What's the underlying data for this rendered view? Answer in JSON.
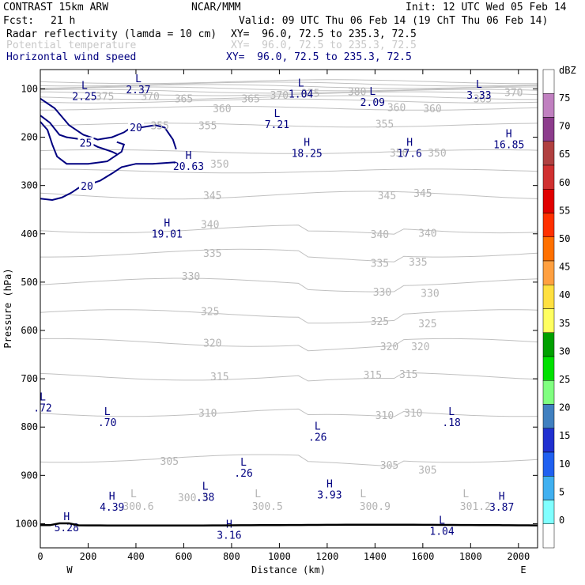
{
  "header": {
    "model": "CONTRAST 15km ARW",
    "center": "NCAR/MMM",
    "init": "Init: 12 UTC Wed 05 Feb 14",
    "fcst_label": "Fcst:",
    "fcst_value": "21 h",
    "valid": "Valid: 09 UTC Thu 06 Feb 14 (19 ChT Thu 06 Feb 14)",
    "fields": [
      {
        "name": "Radar reflectivity (lamda = 10 cm)",
        "xy": "XY=  96.0, 72.5 to 235.3, 72.5",
        "color": "#000000"
      },
      {
        "name": "Potential temperature",
        "xy": "XY=  96.0, 72.5 to 235.3, 72.5",
        "color": "#c8c8c8"
      },
      {
        "name": "Horizontal wind speed",
        "xy": "XY=  96.0, 72.5 to 235.3, 72.5",
        "color": "#000080"
      }
    ]
  },
  "chart_data": {
    "type": "contour-cross-section",
    "xlabel": "Distance (km)",
    "ylabel": "Pressure (hPa)",
    "xlim": [
      0,
      2080
    ],
    "ylim": [
      1050,
      60
    ],
    "x_ticks": [
      0,
      200,
      400,
      600,
      800,
      1000,
      1200,
      1400,
      1600,
      1800,
      2000
    ],
    "y_ticks": [
      100,
      200,
      300,
      400,
      500,
      600,
      700,
      800,
      900,
      1000
    ],
    "west_label": "W",
    "east_label": "E",
    "theta_labels": [
      {
        "text": "375",
        "x": 270,
        "p": 115
      },
      {
        "text": "370",
        "x": 460,
        "p": 115
      },
      {
        "text": "365",
        "x": 600,
        "p": 120
      },
      {
        "text": "365",
        "x": 880,
        "p": 120
      },
      {
        "text": "370",
        "x": 1000,
        "p": 112
      },
      {
        "text": "375",
        "x": 1130,
        "p": 108
      },
      {
        "text": "380",
        "x": 1325,
        "p": 105
      },
      {
        "text": "360",
        "x": 760,
        "p": 140
      },
      {
        "text": "360",
        "x": 1490,
        "p": 138
      },
      {
        "text": "360",
        "x": 1640,
        "p": 140
      },
      {
        "text": "365",
        "x": 1850,
        "p": 120
      },
      {
        "text": "370",
        "x": 1980,
        "p": 107
      },
      {
        "text": "355",
        "x": 500,
        "p": 175
      },
      {
        "text": "355",
        "x": 700,
        "p": 175
      },
      {
        "text": "355",
        "x": 1440,
        "p": 172
      },
      {
        "text": "350",
        "x": 750,
        "p": 255
      },
      {
        "text": "350",
        "x": 1500,
        "p": 232
      },
      {
        "text": "350",
        "x": 1660,
        "p": 232
      },
      {
        "text": "345",
        "x": 720,
        "p": 320
      },
      {
        "text": "345",
        "x": 1450,
        "p": 320
      },
      {
        "text": "345",
        "x": 1600,
        "p": 315
      },
      {
        "text": "340",
        "x": 710,
        "p": 380
      },
      {
        "text": "340",
        "x": 1420,
        "p": 400
      },
      {
        "text": "340",
        "x": 1620,
        "p": 398
      },
      {
        "text": "335",
        "x": 720,
        "p": 440
      },
      {
        "text": "335",
        "x": 1420,
        "p": 460
      },
      {
        "text": "335",
        "x": 1580,
        "p": 458
      },
      {
        "text": "330",
        "x": 630,
        "p": 487
      },
      {
        "text": "330",
        "x": 1430,
        "p": 520
      },
      {
        "text": "330",
        "x": 1630,
        "p": 522
      },
      {
        "text": "325",
        "x": 710,
        "p": 560
      },
      {
        "text": "325",
        "x": 1420,
        "p": 580
      },
      {
        "text": "325",
        "x": 1620,
        "p": 585
      },
      {
        "text": "320",
        "x": 720,
        "p": 625
      },
      {
        "text": "320",
        "x": 1460,
        "p": 633
      },
      {
        "text": "320",
        "x": 1590,
        "p": 633
      },
      {
        "text": "315",
        "x": 750,
        "p": 695
      },
      {
        "text": "315",
        "x": 1390,
        "p": 692
      },
      {
        "text": "315",
        "x": 1540,
        "p": 690
      },
      {
        "text": "310",
        "x": 700,
        "p": 770
      },
      {
        "text": "310",
        "x": 1440,
        "p": 775
      },
      {
        "text": "310",
        "x": 1560,
        "p": 770
      },
      {
        "text": "305",
        "x": 540,
        "p": 870
      },
      {
        "text": "305",
        "x": 1460,
        "p": 878
      },
      {
        "text": "305",
        "x": 1620,
        "p": 888
      },
      {
        "text": "L",
        "x": 390,
        "p": 937
      },
      {
        "text": "300.6",
        "x": 410,
        "p": 963
      },
      {
        "text": "300.5",
        "x": 640,
        "p": 945
      },
      {
        "text": "L",
        "x": 910,
        "p": 937
      },
      {
        "text": "300.5",
        "x": 950,
        "p": 963
      },
      {
        "text": "L",
        "x": 1350,
        "p": 937
      },
      {
        "text": "300.9",
        "x": 1400,
        "p": 963
      },
      {
        "text": "L",
        "x": 1780,
        "p": 937
      },
      {
        "text": "301.2",
        "x": 1820,
        "p": 963
      }
    ],
    "wind_contours": [
      {
        "label": "20",
        "points": [
          [
            0,
            120
          ],
          [
            60,
            140
          ],
          [
            120,
            175
          ],
          [
            180,
            195
          ],
          [
            240,
            205
          ],
          [
            300,
            200
          ],
          [
            350,
            190
          ],
          [
            370,
            183
          ]
        ],
        "label_at": [
          400,
          181
        ]
      },
      {
        "label": "20",
        "points": [
          [
            420,
            180
          ],
          [
            480,
            175
          ],
          [
            520,
            180
          ],
          [
            555,
            205
          ],
          [
            568,
            225
          ]
        ],
        "label_at": null
      },
      {
        "label": "20",
        "points": [
          [
            0,
            327
          ],
          [
            50,
            330
          ],
          [
            90,
            325
          ],
          [
            130,
            315
          ],
          [
            160,
            305
          ],
          [
            190,
            300
          ],
          [
            250,
            290
          ],
          [
            300,
            275
          ],
          [
            340,
            262
          ],
          [
            400,
            255
          ],
          [
            470,
            255
          ],
          [
            565,
            252
          ]
        ],
        "label_at": [
          195,
          302
        ]
      },
      {
        "label": "25",
        "points": [
          [
            0,
            155
          ],
          [
            40,
            170
          ],
          [
            80,
            195
          ],
          [
            110,
            200
          ],
          [
            180,
            205
          ],
          [
            240,
            220
          ],
          [
            300,
            230
          ],
          [
            320,
            235
          ]
        ],
        "label_at": [
          190,
          213
        ]
      },
      {
        "label": "25",
        "points": [
          [
            0,
            168
          ],
          [
            30,
            185
          ],
          [
            50,
            215
          ],
          [
            70,
            240
          ],
          [
            110,
            255
          ],
          [
            200,
            255
          ],
          [
            280,
            250
          ],
          [
            340,
            230
          ],
          [
            350,
            215
          ],
          [
            320,
            210
          ]
        ],
        "label_at": null
      }
    ],
    "extrema": [
      {
        "type": "L",
        "value": "2.25",
        "x": 185,
        "p": 100,
        "color": "#000080"
      },
      {
        "type": "L",
        "value": "2.37",
        "x": 410,
        "p": 86,
        "color": "#000080"
      },
      {
        "type": "L",
        "value": "1.04",
        "x": 1090,
        "p": 95,
        "color": "#000080"
      },
      {
        "type": "L",
        "value": "2.09",
        "x": 1390,
        "p": 112,
        "color": "#000080"
      },
      {
        "type": "L",
        "value": "3.33",
        "x": 1835,
        "p": 98,
        "color": "#000080"
      },
      {
        "type": "L",
        "value": "7.21",
        "x": 990,
        "p": 158,
        "color": "#000080"
      },
      {
        "type": "H",
        "value": "18.25",
        "x": 1115,
        "p": 218,
        "color": "#000080"
      },
      {
        "type": "H",
        "value": "17.6",
        "x": 1545,
        "p": 218,
        "color": "#000080"
      },
      {
        "type": "H",
        "value": "16.85",
        "x": 1960,
        "p": 200,
        "color": "#000080"
      },
      {
        "type": "H",
        "value": "20.63",
        "x": 620,
        "p": 245,
        "color": "#000080"
      },
      {
        "type": "H",
        "value": "19.01",
        "x": 530,
        "p": 385,
        "color": "#000080"
      },
      {
        "type": "L",
        "value": ".72",
        "x": 10,
        "p": 745,
        "color": "#000080"
      },
      {
        "type": "L",
        "value": ".70",
        "x": 280,
        "p": 775,
        "color": "#000080"
      },
      {
        "type": "L",
        "value": ".26",
        "x": 1160,
        "p": 805,
        "color": "#000080"
      },
      {
        "type": "L",
        "value": ".18",
        "x": 1720,
        "p": 775,
        "color": "#000080"
      },
      {
        "type": "L",
        "value": ".26",
        "x": 850,
        "p": 880,
        "color": "#000080"
      },
      {
        "type": "L",
        "value": ".38",
        "x": 690,
        "p": 930,
        "color": "#000080"
      },
      {
        "type": "H",
        "value": "3.93",
        "x": 1210,
        "p": 925,
        "color": "#000080"
      },
      {
        "type": "H",
        "value": "4.39",
        "x": 300,
        "p": 950,
        "color": "#000080"
      },
      {
        "type": "H",
        "value": "3.87",
        "x": 1930,
        "p": 950,
        "color": "#000080"
      },
      {
        "type": "L",
        "value": "1.04",
        "x": 1680,
        "p": 1000,
        "color": "#000080"
      },
      {
        "type": "H",
        "value": "3.16",
        "x": 790,
        "p": 1008,
        "color": "#000080"
      },
      {
        "type": "H",
        "value": "5.28",
        "x": 110,
        "p": 993,
        "color": "#000080"
      }
    ],
    "colorbar": {
      "unit": "dBZ",
      "levels": [
        "75",
        "70",
        "65",
        "60",
        "55",
        "50",
        "45",
        "40",
        "35",
        "30",
        "25",
        "20",
        "15",
        "10",
        "5",
        "0"
      ],
      "colors": [
        "#ffffff",
        "#c080c0",
        "#8c3c8c",
        "#b04040",
        "#d03030",
        "#e00000",
        "#ff3000",
        "#ff7000",
        "#ffa040",
        "#ffe040",
        "#ffff60",
        "#00a000",
        "#00e000",
        "#80ff80",
        "#4080c0",
        "#2030d0",
        "#2060f0",
        "#40b0f0",
        "#80ffff",
        "#ffffff"
      ]
    }
  }
}
